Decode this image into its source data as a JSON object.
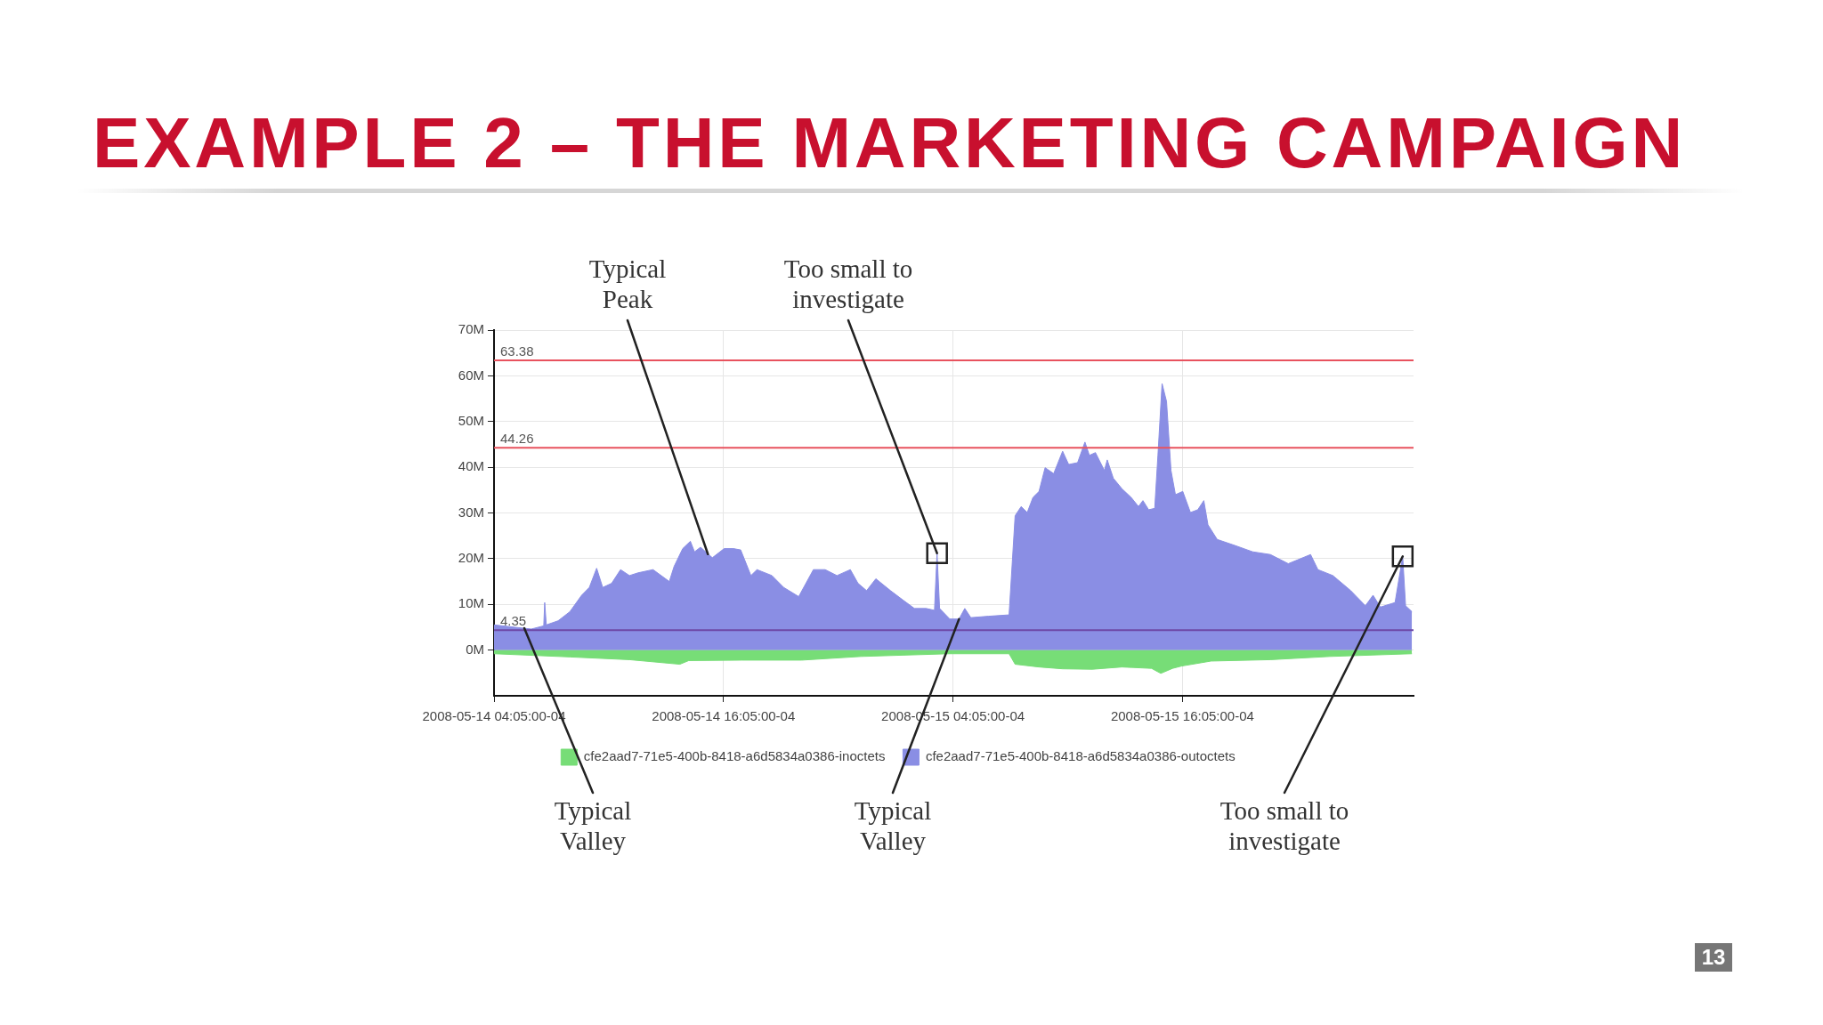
{
  "chart_data": {
    "type": "area",
    "title": "EXAMPLE 2 – THE MARKETING CAMPAIGN",
    "series": [
      {
        "name": "cfe2aad7-71e5-400b-8418-a6d5834a0386-inoctets",
        "color": "#77dd77",
        "x": [
          "2008-05-14T04:05",
          "2008-05-14T08:03",
          "2008-05-14T11:10",
          "2008-05-14T13:48",
          "2008-05-14T14:16",
          "2008-05-14T17:03",
          "2008-05-14T20:10",
          "2008-05-14T23:16",
          "2008-05-15T03:55",
          "2008-05-15T07:01",
          "2008-05-15T07:20",
          "2008-05-15T08:35",
          "2008-05-15T09:49",
          "2008-05-15T11:22",
          "2008-05-15T12:55",
          "2008-05-15T14:28",
          "2008-05-15T14:57",
          "2008-05-15T15:34",
          "2008-05-15T16:02",
          "2008-05-15T17:35",
          "2008-05-15T20:41",
          "2008-05-15T23:47",
          "2008-05-16T04:05"
        ],
        "values": [
          -0.8,
          -1.5,
          -2.1,
          -3.1,
          -2.3,
          -2.2,
          -2.2,
          -1.4,
          -0.8,
          -0.8,
          -3.1,
          -3.7,
          -4.1,
          -4.2,
          -3.7,
          -4.0,
          -5.1,
          -4.0,
          -3.5,
          -2.4,
          -2.1,
          -1.4,
          -0.8
        ]
      },
      {
        "name": "cfe2aad7-71e5-400b-8418-a6d5834a0386-outoctets",
        "color": "#8a8ee4",
        "x": [
          "2008-05-14T04:05",
          "2008-05-14T06:02",
          "2008-05-14T06:41",
          "2008-05-14T06:44",
          "2008-05-14T06:49",
          "2008-05-14T07:26",
          "2008-05-14T08:03",
          "2008-05-14T08:40",
          "2008-05-14T09:04",
          "2008-05-14T09:27",
          "2008-05-14T09:46",
          "2008-05-14T10:14",
          "2008-05-14T10:42",
          "2008-05-14T11:10",
          "2008-05-14T11:37",
          "2008-05-14T12:24",
          "2008-05-14T13:15",
          "2008-05-14T13:30",
          "2008-05-14T13:57",
          "2008-05-14T14:21",
          "2008-05-14T14:34",
          "2008-05-14T14:53",
          "2008-05-14T15:30",
          "2008-05-14T16:07",
          "2008-05-14T16:36",
          "2008-05-14T16:59",
          "2008-05-14T17:31",
          "2008-05-14T17:50",
          "2008-05-14T18:37",
          "2008-05-14T19:14",
          "2008-05-14T20:01",
          "2008-05-14T20:47",
          "2008-05-14T21:24",
          "2008-05-14T22:01",
          "2008-05-14T22:43",
          "2008-05-14T23:07",
          "2008-05-14T23:34",
          "2008-05-15T00:03",
          "2008-05-15T00:49",
          "2008-05-15T01:27",
          "2008-05-15T02:04",
          "2008-05-15T02:41",
          "2008-05-15T03:07",
          "2008-05-15T03:15",
          "2008-05-15T03:23",
          "2008-05-15T03:55",
          "2008-05-15T04:24",
          "2008-05-15T04:42",
          "2008-05-15T05:01",
          "2008-05-15T05:57",
          "2008-05-15T07:01",
          "2008-05-15T07:20",
          "2008-05-15T07:39",
          "2008-05-15T07:58",
          "2008-05-15T08:16",
          "2008-05-15T08:35",
          "2008-05-15T08:54",
          "2008-05-15T09:21",
          "2008-05-15T09:49",
          "2008-05-15T10:08",
          "2008-05-15T10:36",
          "2008-05-15T10:59",
          "2008-05-15T11:13",
          "2008-05-15T11:32",
          "2008-05-15T12:00",
          "2008-05-15T12:09",
          "2008-05-15T12:28",
          "2008-05-15T12:55",
          "2008-05-15T13:24",
          "2008-05-15T13:47",
          "2008-05-15T14:01",
          "2008-05-15T14:19",
          "2008-05-15T14:38",
          "2008-05-15T14:48",
          "2008-05-15T15:01",
          "2008-05-15T15:15",
          "2008-05-15T15:29",
          "2008-05-15T15:43",
          "2008-05-15T16:06",
          "2008-05-15T16:30",
          "2008-05-15T16:53",
          "2008-05-15T17:12",
          "2008-05-15T17:25",
          "2008-05-15T17:54",
          "2008-05-15T18:49",
          "2008-05-15T19:45",
          "2008-05-15T20:41",
          "2008-05-15T21:37",
          "2008-05-15T22:47",
          "2008-05-15T23:10",
          "2008-05-15T23:57",
          "2008-05-16T00:53",
          "2008-05-16T01:39",
          "2008-05-16T02:03",
          "2008-05-16T02:26",
          "2008-05-16T03:12",
          "2008-05-16T03:36",
          "2008-05-16T03:45",
          "2008-05-16T04:05"
        ],
        "values": [
          5.5,
          4.6,
          5.3,
          10.4,
          5.5,
          6.4,
          8.4,
          12.0,
          13.7,
          17.9,
          13.7,
          14.6,
          17.6,
          16.3,
          16.9,
          17.6,
          15.0,
          18.3,
          22.2,
          23.8,
          21.5,
          22.5,
          20.2,
          22.2,
          22.2,
          21.9,
          16.3,
          17.6,
          16.3,
          13.7,
          11.7,
          17.6,
          17.6,
          16.3,
          17.6,
          14.6,
          13.0,
          15.6,
          13.0,
          11.0,
          9.1,
          9.1,
          8.7,
          21.2,
          9.1,
          6.8,
          6.8,
          9.1,
          7.1,
          7.4,
          7.7,
          29.4,
          31.4,
          30.1,
          33.4,
          34.7,
          39.9,
          38.6,
          43.5,
          40.6,
          41.0,
          45.5,
          42.6,
          43.2,
          39.3,
          41.6,
          37.6,
          35.3,
          33.4,
          31.4,
          32.7,
          30.7,
          31.0,
          42.6,
          58.3,
          54.4,
          39.3,
          34.0,
          34.7,
          30.1,
          30.7,
          32.7,
          27.4,
          24.2,
          22.9,
          21.5,
          20.9,
          18.9,
          20.9,
          17.6,
          16.3,
          13.0,
          9.7,
          12.0,
          9.4,
          10.4,
          20.5,
          9.7,
          8.4
        ]
      }
    ],
    "xlim": [
      "2008-05-14T04:05",
      "2008-05-16T04:10"
    ],
    "xticks": [
      {
        "value": "2008-05-14T04:05",
        "label": "2008-05-14 04:05:00-04"
      },
      {
        "value": "2008-05-14T16:05",
        "label": "2008-05-14 16:05:00-04"
      },
      {
        "value": "2008-05-15T04:05",
        "label": "2008-05-15 04:05:00-04"
      },
      {
        "value": "2008-05-15T16:05",
        "label": "2008-05-15 16:05:00-04"
      }
    ],
    "ylim": [
      -10,
      70
    ],
    "yticks": [
      {
        "value": 0,
        "label": "0M"
      },
      {
        "value": 10,
        "label": "10M"
      },
      {
        "value": 20,
        "label": "20M"
      },
      {
        "value": 30,
        "label": "30M"
      },
      {
        "value": 40,
        "label": "40M"
      },
      {
        "value": 50,
        "label": "50M"
      },
      {
        "value": 60,
        "label": "60M"
      },
      {
        "value": 70,
        "label": "70M"
      }
    ],
    "ref_lines": [
      {
        "axis": "y",
        "value": 63.38,
        "label": "63.38",
        "color": "#e8525e"
      },
      {
        "axis": "y",
        "value": 44.26,
        "label": "44.26",
        "color": "#e8525e"
      },
      {
        "axis": "y",
        "value": 4.35,
        "label": "4.35",
        "color": "#6e48a6"
      }
    ],
    "annotations": [
      {
        "text": "Typical Peak",
        "x": "2008-05-14T15:16",
        "y": 21
      },
      {
        "text": "Too small to investigate",
        "x": "2008-05-15T03:15",
        "y": 21.2
      },
      {
        "text": "Typical Valley",
        "x": "2008-05-14T05:40",
        "y": 4.8
      },
      {
        "text": "Typical Valley",
        "x": "2008-05-15T04:24",
        "y": 6.8
      },
      {
        "text": "Too small to investigate",
        "x": "2008-05-16T03:36",
        "y": 20.5
      },
      "13"
    ],
    "grid": true,
    "legend": "bottom"
  }
}
